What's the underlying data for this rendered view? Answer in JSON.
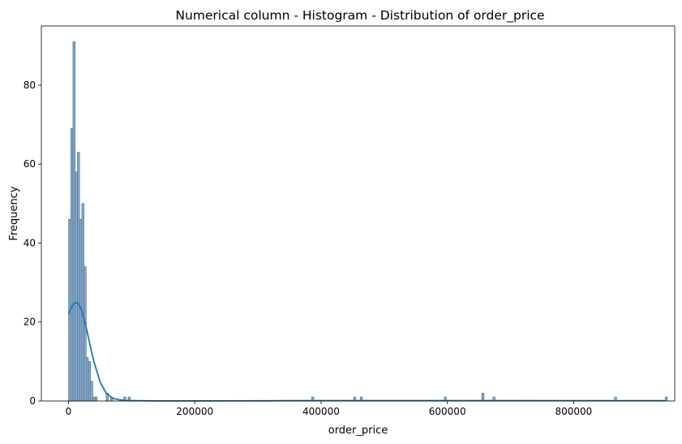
{
  "chart_data": {
    "type": "bar",
    "title": "Numerical column - Histogram - Distribution of order_price",
    "xlabel": "order_price",
    "ylabel": "Frequency",
    "xlim": [
      -43000,
      960000
    ],
    "ylim": [
      0,
      95
    ],
    "xticks": [
      0,
      200000,
      400000,
      600000,
      800000
    ],
    "yticks": [
      0,
      20,
      40,
      60,
      80
    ],
    "bin_width": 3500,
    "bins": [
      {
        "x": 0,
        "count": 46
      },
      {
        "x": 3500,
        "count": 69
      },
      {
        "x": 7000,
        "count": 91
      },
      {
        "x": 10500,
        "count": 58
      },
      {
        "x": 14000,
        "count": 63
      },
      {
        "x": 17500,
        "count": 46
      },
      {
        "x": 21000,
        "count": 50
      },
      {
        "x": 24500,
        "count": 34
      },
      {
        "x": 28000,
        "count": 11
      },
      {
        "x": 31500,
        "count": 10
      },
      {
        "x": 35000,
        "count": 5
      },
      {
        "x": 38500,
        "count": 1
      },
      {
        "x": 42000,
        "count": 1
      },
      {
        "x": 59500,
        "count": 2
      },
      {
        "x": 66500,
        "count": 1
      },
      {
        "x": 87500,
        "count": 1
      },
      {
        "x": 94500,
        "count": 1
      },
      {
        "x": 385000,
        "count": 1
      },
      {
        "x": 451500,
        "count": 1
      },
      {
        "x": 462000,
        "count": 1
      },
      {
        "x": 595000,
        "count": 1
      },
      {
        "x": 654500,
        "count": 2
      },
      {
        "x": 672000,
        "count": 1
      },
      {
        "x": 864500,
        "count": 1
      },
      {
        "x": 945000,
        "count": 1
      }
    ],
    "kde": {
      "x": [
        0,
        5000,
        10000,
        15000,
        20000,
        25000,
        30000,
        35000,
        40000,
        50000,
        60000,
        70000,
        80000,
        90000,
        100000,
        120000,
        150000,
        200000,
        300000,
        400000,
        500000,
        600000,
        700000,
        800000,
        900000,
        945000
      ],
      "y": [
        22,
        23.8,
        24.9,
        24.8,
        23.3,
        20.6,
        17.2,
        13.5,
        10.1,
        4.8,
        1.9,
        0.7,
        0.3,
        0.15,
        0.1,
        0.05,
        0.03,
        0.02,
        0.05,
        0.1,
        0.1,
        0.1,
        0.1,
        0.08,
        0.08,
        0.07
      ]
    },
    "colors": {
      "bar_fill": "#7f9fbc",
      "bar_stroke": "#3a6e9b",
      "kde_line": "#1f77b4",
      "axis": "#000000"
    },
    "grid": false,
    "legend": "none"
  }
}
